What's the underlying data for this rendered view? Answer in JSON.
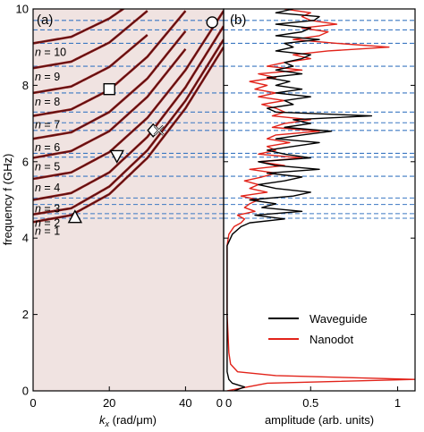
{
  "chart_data": [
    {
      "panel_label": "(a)",
      "type": "line",
      "xlabel_var": "k",
      "xlabel_sub": "x",
      "xlabel_unit": " (rad/μm)",
      "ylabel": "frequency f (GHz)",
      "xlim": [
        0,
        50
      ],
      "ylim": [
        0,
        10
      ],
      "xticks": [
        "0",
        "20",
        "40",
        "0"
      ],
      "yticks": [
        "0",
        "2",
        "4",
        "6",
        "8",
        "10"
      ],
      "background_color": "#f0e3e1",
      "curve_color": "#8b1a1a",
      "dashed_line_color": "#3b78c2",
      "mode_labels": [
        "n = 1",
        "n = 2",
        "n = 3",
        "n = 4",
        "n = 5",
        "n = 6",
        "n = 7",
        "n = 8",
        "n = 9",
        "n = 10"
      ],
      "series": [
        {
          "n": 1,
          "f0": 4.42,
          "x": [
            0,
            10,
            20,
            30,
            40,
            50
          ],
          "values": [
            4.42,
            4.6,
            5.15,
            6.1,
            7.4,
            9.0
          ]
        },
        {
          "n": 2,
          "f0": 4.62,
          "x": [
            0,
            10,
            20,
            30,
            40,
            50
          ],
          "values": [
            4.62,
            4.78,
            5.35,
            6.3,
            7.6,
            9.2
          ]
        },
        {
          "n": 3,
          "f0": 5.0,
          "x": [
            0,
            10,
            20,
            30,
            40,
            50
          ],
          "values": [
            5.0,
            5.18,
            5.72,
            6.65,
            7.95,
            9.55
          ]
        },
        {
          "n": 4,
          "f0": 5.55,
          "x": [
            0,
            10,
            20,
            30,
            40,
            50
          ],
          "values": [
            5.55,
            5.72,
            6.25,
            7.15,
            8.4,
            9.95
          ]
        },
        {
          "n": 5,
          "f0": 6.1,
          "x": [
            0,
            10,
            20,
            30,
            40
          ],
          "values": [
            6.1,
            6.28,
            6.8,
            7.7,
            8.95
          ]
        },
        {
          "n": 6,
          "f0": 6.6,
          "x": [
            0,
            10,
            20,
            30,
            40
          ],
          "values": [
            6.6,
            6.77,
            7.3,
            8.18,
            9.42
          ]
        },
        {
          "n": 7,
          "f0": 7.2,
          "x": [
            0,
            10,
            20,
            30,
            40
          ],
          "values": [
            7.2,
            7.37,
            7.88,
            8.75,
            9.95
          ]
        },
        {
          "n": 8,
          "f0": 7.8,
          "x": [
            0,
            10,
            20,
            30
          ],
          "values": [
            7.8,
            7.97,
            8.48,
            9.32
          ]
        },
        {
          "n": 9,
          "f0": 8.45,
          "x": [
            0,
            10,
            20,
            30
          ],
          "values": [
            8.45,
            8.62,
            9.12,
            9.95
          ]
        },
        {
          "n": 10,
          "f0": 9.1,
          "x": [
            0,
            10,
            20,
            28
          ],
          "values": [
            9.1,
            9.27,
            9.75,
            10.3
          ]
        }
      ],
      "markers": [
        {
          "shape": "triangle-up",
          "x": 11,
          "y": 4.55
        },
        {
          "shape": "triangle-down",
          "x": 22,
          "y": 6.15
        },
        {
          "shape": "diamond",
          "x": 31.5,
          "y": 6.82
        },
        {
          "shape": "x",
          "x": 33,
          "y": 6.82
        },
        {
          "shape": "square",
          "x": 20,
          "y": 7.9
        },
        {
          "shape": "circle",
          "x": 47,
          "y": 9.65
        }
      ],
      "dashed_lines_y": [
        4.52,
        4.64,
        4.88,
        5.05,
        5.62,
        6.12,
        6.22,
        6.82,
        7.02,
        7.3,
        7.8,
        8.5,
        9.1,
        9.45,
        9.7
      ]
    },
    {
      "panel_label": "(b)",
      "type": "line",
      "xlabel": "amplitude (arb. units)",
      "xlim": [
        0,
        1.1
      ],
      "ylim": [
        0,
        10
      ],
      "xticks": [
        "0",
        "0.5",
        "1"
      ],
      "dashed_line_color": "#3b78c2",
      "legend_position": "center-right",
      "series": [
        {
          "name": "Waveguide",
          "color": "#000000",
          "y": [
            0.0,
            0.1,
            0.2,
            0.3,
            0.5,
            1.0,
            2.0,
            3.0,
            3.8,
            4.1,
            4.3,
            4.4,
            4.5,
            4.6,
            4.7,
            4.8,
            4.9,
            5.0,
            5.1,
            5.2,
            5.3,
            5.4,
            5.5,
            5.6,
            5.7,
            5.8,
            5.9,
            6.0,
            6.1,
            6.2,
            6.3,
            6.4,
            6.5,
            6.6,
            6.7,
            6.8,
            6.9,
            7.0,
            7.1,
            7.2,
            7.3,
            7.4,
            7.5,
            7.6,
            7.7,
            7.8,
            7.9,
            8.0,
            8.1,
            8.2,
            8.3,
            8.4,
            8.5,
            8.6,
            8.7,
            8.8,
            8.9,
            9.0,
            9.1,
            9.2,
            9.3,
            9.4,
            9.5,
            9.6,
            9.7,
            9.8,
            9.9,
            10.0
          ],
          "values": [
            0.06,
            0.12,
            0.05,
            0.03,
            0.02,
            0.02,
            0.02,
            0.02,
            0.02,
            0.05,
            0.1,
            0.15,
            0.35,
            0.18,
            0.45,
            0.22,
            0.3,
            0.15,
            0.4,
            0.5,
            0.3,
            0.2,
            0.35,
            0.45,
            0.25,
            0.55,
            0.3,
            0.2,
            0.5,
            0.35,
            0.25,
            0.4,
            0.55,
            0.3,
            0.45,
            0.62,
            0.35,
            0.5,
            0.4,
            0.85,
            0.3,
            0.25,
            0.4,
            0.35,
            0.5,
            0.3,
            0.45,
            0.3,
            0.38,
            0.25,
            0.45,
            0.3,
            0.4,
            0.35,
            0.45,
            0.5,
            0.3,
            0.4,
            0.35,
            0.55,
            0.3,
            0.45,
            0.5,
            0.3,
            0.52,
            0.55,
            0.3,
            0.4
          ]
        },
        {
          "name": "Nanodot",
          "color": "#e2231a",
          "y": [
            0.0,
            0.2,
            0.3,
            0.4,
            0.5,
            0.7,
            1.0,
            2.0,
            3.0,
            3.8,
            4.1,
            4.3,
            4.4,
            4.5,
            4.6,
            4.7,
            4.8,
            4.9,
            5.0,
            5.1,
            5.2,
            5.3,
            5.4,
            5.5,
            5.6,
            5.7,
            5.8,
            5.9,
            6.0,
            6.1,
            6.2,
            6.3,
            6.4,
            6.5,
            6.6,
            6.7,
            6.8,
            6.9,
            7.0,
            7.1,
            7.2,
            7.3,
            7.4,
            7.5,
            7.6,
            7.7,
            7.8,
            7.9,
            8.0,
            8.1,
            8.2,
            8.3,
            8.4,
            8.5,
            8.6,
            8.7,
            8.8,
            8.9,
            9.0,
            9.1,
            9.2,
            9.3,
            9.4,
            9.5,
            9.6,
            9.7,
            9.8,
            9.9,
            10.0
          ],
          "values": [
            0.02,
            0.25,
            1.1,
            0.3,
            0.08,
            0.04,
            0.03,
            0.02,
            0.02,
            0.02,
            0.03,
            0.06,
            0.1,
            0.12,
            0.08,
            0.18,
            0.12,
            0.15,
            0.2,
            0.1,
            0.25,
            0.15,
            0.2,
            0.12,
            0.22,
            0.3,
            0.15,
            0.35,
            0.2,
            0.45,
            0.2,
            0.3,
            0.25,
            0.38,
            0.25,
            0.3,
            0.55,
            0.28,
            0.35,
            0.5,
            0.28,
            0.35,
            0.3,
            0.22,
            0.35,
            0.2,
            0.3,
            0.18,
            0.25,
            0.15,
            0.3,
            0.2,
            0.45,
            0.25,
            0.35,
            0.5,
            0.4,
            0.6,
            0.95,
            0.65,
            0.4,
            0.55,
            0.6,
            0.45,
            0.65,
            0.5,
            0.45,
            0.5,
            0.35
          ]
        }
      ]
    }
  ]
}
